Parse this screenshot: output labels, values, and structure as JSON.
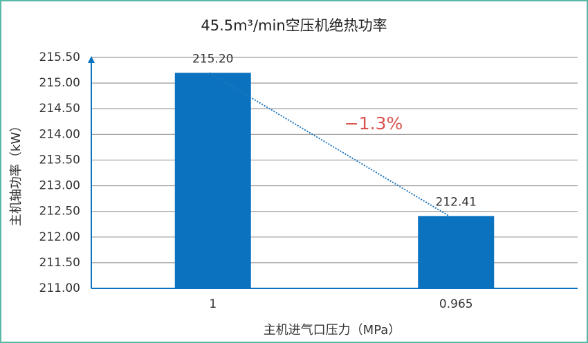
{
  "chart_data": {
    "type": "bar",
    "title": "45.5m³/min空压机绝热功率",
    "x_label": "主机进气口压力（MPa）",
    "y_label": "主机轴功率（kW）",
    "categories": [
      "1",
      "0.965"
    ],
    "values": [
      215.2,
      212.41
    ],
    "value_labels": [
      "215.20",
      "212.41"
    ],
    "color": "#0b72bf",
    "annotation": "−1.3%",
    "annotation_color": "#d9534f",
    "trend_color": "#1f77c0",
    "ylim": [
      211,
      215.5
    ],
    "yticks": [
      {
        "value": 211,
        "label": "211.00"
      },
      {
        "value": 211.5,
        "label": "211.50"
      },
      {
        "value": 212,
        "label": "212.00"
      },
      {
        "value": 212.5,
        "label": "212.50"
      },
      {
        "value": 213,
        "label": "213.00"
      },
      {
        "value": 213.5,
        "label": "213.50"
      },
      {
        "value": 214,
        "label": "214.00"
      },
      {
        "value": 214.5,
        "label": "214.50"
      },
      {
        "value": 215,
        "label": "215.00"
      },
      {
        "value": 215.5,
        "label": "215.50"
      }
    ],
    "grid": true
  }
}
